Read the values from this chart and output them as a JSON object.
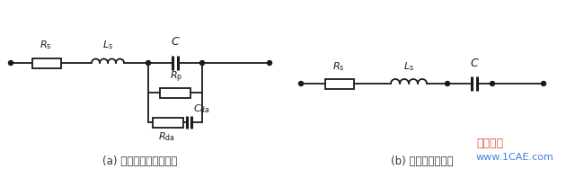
{
  "bg_color": "#ffffff",
  "line_color": "#1a1a1a",
  "label_a": "(a) 电容器实际等效电路",
  "label_b": "(b) 电容器简化模型",
  "watermark1": "www.1CAE.com",
  "watermark2": "仿真在线",
  "fig_width": 6.5,
  "fig_height": 2.08,
  "dpi": 100
}
